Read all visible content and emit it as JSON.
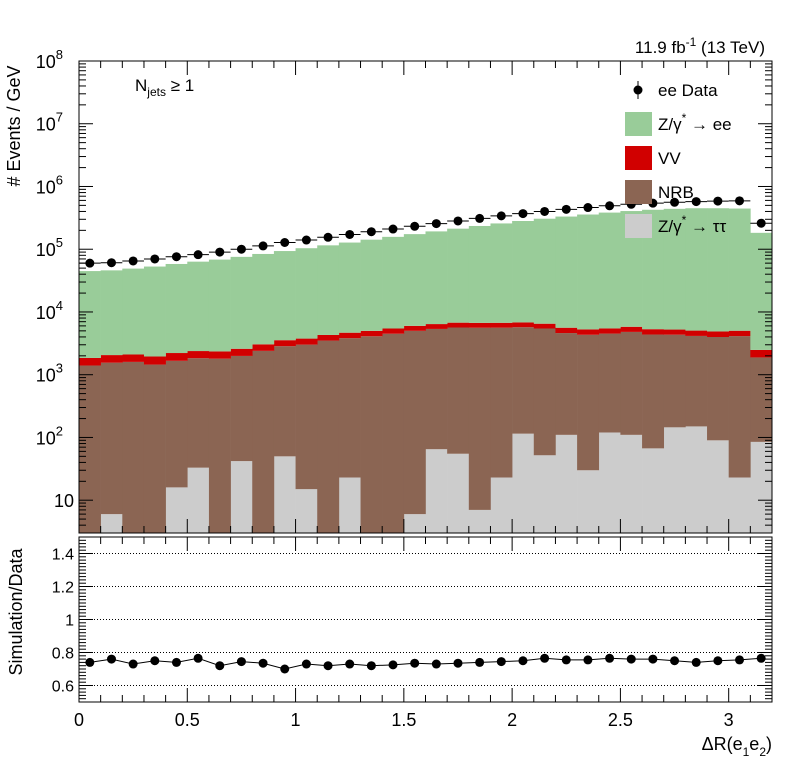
{
  "chart_data": [
    {
      "type": "bar",
      "stacked": true,
      "scale": "log",
      "xlim": [
        0,
        3.2
      ],
      "ylim": [
        3,
        100000000
      ],
      "ylabel": "# Events / GeV",
      "lumi_main": "11.9 fb",
      "lumi_sup": "-1",
      "lumi_tail": " (13 TeV)",
      "category_main": "N",
      "category_sub": "jets",
      "category_tail": " ≥ 1",
      "y_ticks": [
        {
          "value": 10,
          "label": "10",
          "sup": ""
        },
        {
          "value": 100,
          "label": "10",
          "sup": "2"
        },
        {
          "value": 1000,
          "label": "10",
          "sup": "3"
        },
        {
          "value": 10000,
          "label": "10",
          "sup": "4"
        },
        {
          "value": 100000,
          "label": "10",
          "sup": "5"
        },
        {
          "value": 1000000,
          "label": "10",
          "sup": "6"
        },
        {
          "value": 10000000,
          "label": "10",
          "sup": "7"
        },
        {
          "value": 100000000,
          "label": "10",
          "sup": "8"
        }
      ],
      "legend_position": "top-right",
      "bin_width": 0.1,
      "x": [
        0.05,
        0.15,
        0.25,
        0.35,
        0.45,
        0.55,
        0.65,
        0.75,
        0.85,
        0.95,
        1.05,
        1.15,
        1.25,
        1.35,
        1.45,
        1.55,
        1.65,
        1.75,
        1.85,
        1.95,
        2.05,
        2.15,
        2.25,
        2.35,
        2.45,
        2.55,
        2.65,
        2.75,
        2.85,
        2.95,
        3.05,
        3.15
      ],
      "series": [
        {
          "name": "Z/γ* → ττ",
          "legend_main": "Z/γ",
          "legend_sup": "*",
          "legend_tail": " → ττ",
          "color": "#cccccc",
          "values": [
            0,
            6,
            0,
            0,
            16,
            33,
            0,
            42,
            0,
            50,
            15,
            0,
            23,
            0,
            0,
            6,
            65,
            55,
            7,
            23,
            115,
            52,
            110,
            30,
            120,
            110,
            67,
            145,
            150,
            90,
            23,
            85
          ]
        },
        {
          "name": "NRB",
          "legend_main": "NRB",
          "legend_sup": "",
          "legend_tail": "",
          "color": "#8b6553",
          "values": [
            1400,
            1550,
            1600,
            1450,
            1650,
            1800,
            1800,
            1950,
            2400,
            2800,
            3000,
            3500,
            3800,
            4100,
            4500,
            5000,
            5300,
            5600,
            5600,
            5600,
            5600,
            5400,
            4500,
            4300,
            4400,
            4700,
            4300,
            4200,
            4000,
            3900,
            4100,
            1800
          ]
        },
        {
          "name": "VV",
          "legend_main": "VV",
          "legend_sup": "",
          "legend_tail": "",
          "color": "#d10000",
          "values": [
            450,
            500,
            500,
            500,
            550,
            550,
            550,
            600,
            650,
            700,
            750,
            800,
            850,
            900,
            950,
            1000,
            1050,
            1100,
            1100,
            1100,
            1100,
            1050,
            1000,
            950,
            950,
            1000,
            950,
            900,
            900,
            900,
            900,
            600
          ]
        },
        {
          "name": "Z/γ* → ee",
          "legend_main": "Z/γ",
          "legend_sup": "*",
          "legend_tail": " → ee",
          "color": "#99cc99",
          "values": [
            43000,
            44000,
            47000,
            51000,
            56000,
            61000,
            66000,
            73000,
            81000,
            90000,
            100000,
            111000,
            123000,
            137000,
            152000,
            168000,
            186000,
            206000,
            228000,
            251000,
            275000,
            300000,
            326000,
            352000,
            378000,
            400000,
            420000,
            435000,
            445000,
            445000,
            440000,
            180000
          ]
        }
      ],
      "data_series": {
        "name": "ee Data",
        "legend_main": "ee Data",
        "color": "#000000",
        "values": [
          60000,
          61000,
          65000,
          70000,
          76000,
          82000,
          90000,
          100000,
          113000,
          128000,
          140000,
          155000,
          172000,
          190000,
          210000,
          232000,
          256000,
          282000,
          310000,
          340000,
          370000,
          400000,
          432000,
          462000,
          492000,
          520000,
          542000,
          560000,
          575000,
          585000,
          590000,
          260000
        ]
      }
    },
    {
      "type": "scatter",
      "xlim": [
        0,
        3.2
      ],
      "ylim": [
        0.5,
        1.5
      ],
      "xlabel_main": "ΔR(e",
      "xlabel_sub1": "1",
      "xlabel_mid": "e",
      "xlabel_sub2": "2",
      "xlabel_tail": ")",
      "ylabel": "Simulation/Data",
      "x_ticks": [
        {
          "value": 0,
          "label": "0"
        },
        {
          "value": 0.5,
          "label": "0.5"
        },
        {
          "value": 1,
          "label": "1"
        },
        {
          "value": 1.5,
          "label": "1.5"
        },
        {
          "value": 2,
          "label": "2"
        },
        {
          "value": 2.5,
          "label": "2.5"
        },
        {
          "value": 3,
          "label": "3"
        }
      ],
      "y_ticks": [
        {
          "value": 0.6,
          "label": "0.6"
        },
        {
          "value": 0.8,
          "label": "0.8"
        },
        {
          "value": 1,
          "label": "1"
        },
        {
          "value": 1.2,
          "label": "1.2"
        },
        {
          "value": 1.4,
          "label": "1.4"
        }
      ],
      "grid_y": [
        0.6,
        0.8,
        1.0,
        1.2,
        1.4
      ],
      "x": [
        0.05,
        0.15,
        0.25,
        0.35,
        0.45,
        0.55,
        0.65,
        0.75,
        0.85,
        0.95,
        1.05,
        1.15,
        1.25,
        1.35,
        1.45,
        1.55,
        1.65,
        1.75,
        1.85,
        1.95,
        2.05,
        2.15,
        2.25,
        2.35,
        2.45,
        2.55,
        2.65,
        2.75,
        2.85,
        2.95,
        3.05,
        3.15
      ],
      "values": [
        0.74,
        0.76,
        0.73,
        0.75,
        0.74,
        0.765,
        0.72,
        0.745,
        0.735,
        0.7,
        0.73,
        0.72,
        0.73,
        0.72,
        0.725,
        0.735,
        0.73,
        0.735,
        0.74,
        0.745,
        0.75,
        0.765,
        0.755,
        0.755,
        0.765,
        0.76,
        0.76,
        0.75,
        0.74,
        0.75,
        0.755,
        0.765
      ]
    }
  ]
}
